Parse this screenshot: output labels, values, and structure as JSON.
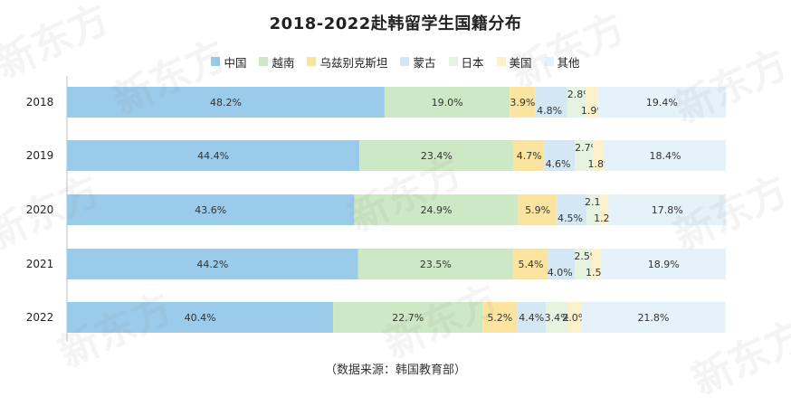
{
  "chart_data": {
    "type": "bar",
    "orientation": "horizontal",
    "stacked": true,
    "title": "2018-2022赴韩留学生国籍分布",
    "categories": [
      "2018",
      "2019",
      "2020",
      "2021",
      "2022"
    ],
    "series": [
      {
        "name": "中国",
        "color": "#9BCBEA",
        "values": [
          48.2,
          44.4,
          43.6,
          44.2,
          40.4
        ],
        "labels": [
          "48.2%",
          "44.4%",
          "43.6%",
          "44.2%",
          "40.4%"
        ]
      },
      {
        "name": "越南",
        "color": "#CDE8C5",
        "values": [
          19.0,
          23.4,
          24.9,
          23.5,
          22.7
        ],
        "labels": [
          "19.0%",
          "23.4%",
          "24.9%",
          "23.5%",
          "22.7%"
        ]
      },
      {
        "name": "乌兹别克斯坦",
        "color": "#FBE4A0",
        "values": [
          3.9,
          4.7,
          5.9,
          5.4,
          5.2
        ],
        "labels": [
          "3.9%",
          "4.7%",
          "5.9%",
          "5.4%",
          "5.2%"
        ]
      },
      {
        "name": "蒙古",
        "color": "#D3E8F4",
        "values": [
          4.8,
          4.6,
          4.5,
          4.0,
          4.4
        ],
        "labels": [
          "4.8%",
          "4.6%",
          "4.5%",
          "4.0%",
          "4.4%"
        ]
      },
      {
        "name": "日本",
        "color": "#E6F3E1",
        "values": [
          2.8,
          2.7,
          2.1,
          2.5,
          3.4
        ],
        "labels": [
          "2.8%",
          "2.7%",
          "2.1%",
          "2.5%",
          "3.4%"
        ]
      },
      {
        "name": "美国",
        "color": "#FDF1CC",
        "values": [
          1.9,
          1.8,
          1.2,
          1.5,
          2.0
        ],
        "labels": [
          "1.9%",
          "1.8%",
          "1.2%",
          "1.5%",
          "2.0%"
        ]
      },
      {
        "name": "其他",
        "color": "#E5F2FA",
        "values": [
          19.4,
          18.4,
          17.8,
          18.9,
          21.8
        ],
        "labels": [
          "19.4%",
          "18.4%",
          "17.8%",
          "18.9%",
          "21.8%"
        ]
      }
    ],
    "xlim": [
      0,
      100
    ],
    "grid": false,
    "legend": "top-center"
  },
  "source_text": "（数据来源：韩国教育部）",
  "watermark_text": "新东方"
}
